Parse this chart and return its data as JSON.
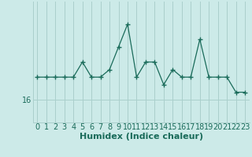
{
  "x": [
    0,
    1,
    2,
    3,
    4,
    5,
    6,
    7,
    8,
    9,
    10,
    11,
    12,
    13,
    14,
    15,
    16,
    17,
    18,
    19,
    20,
    21,
    22,
    23
  ],
  "y": [
    17.5,
    17.5,
    17.5,
    17.5,
    17.5,
    18.5,
    17.5,
    17.5,
    18.0,
    19.5,
    21.0,
    17.5,
    18.5,
    18.5,
    17.0,
    18.0,
    17.5,
    17.5,
    20.0,
    17.5,
    17.5,
    17.5,
    16.5,
    16.5
  ],
  "xlabel": "Humidex (Indice chaleur)",
  "ytick_label": "16",
  "ytick_val": 16,
  "line_color": "#1a6b5a",
  "marker_color": "#1a6b5a",
  "bg_color": "#cceae8",
  "grid_color": "#aacfcc",
  "xlim": [
    -0.5,
    23.5
  ],
  "ylim": [
    14.5,
    22.5
  ],
  "xlabel_fontsize": 8,
  "tick_fontsize": 7
}
